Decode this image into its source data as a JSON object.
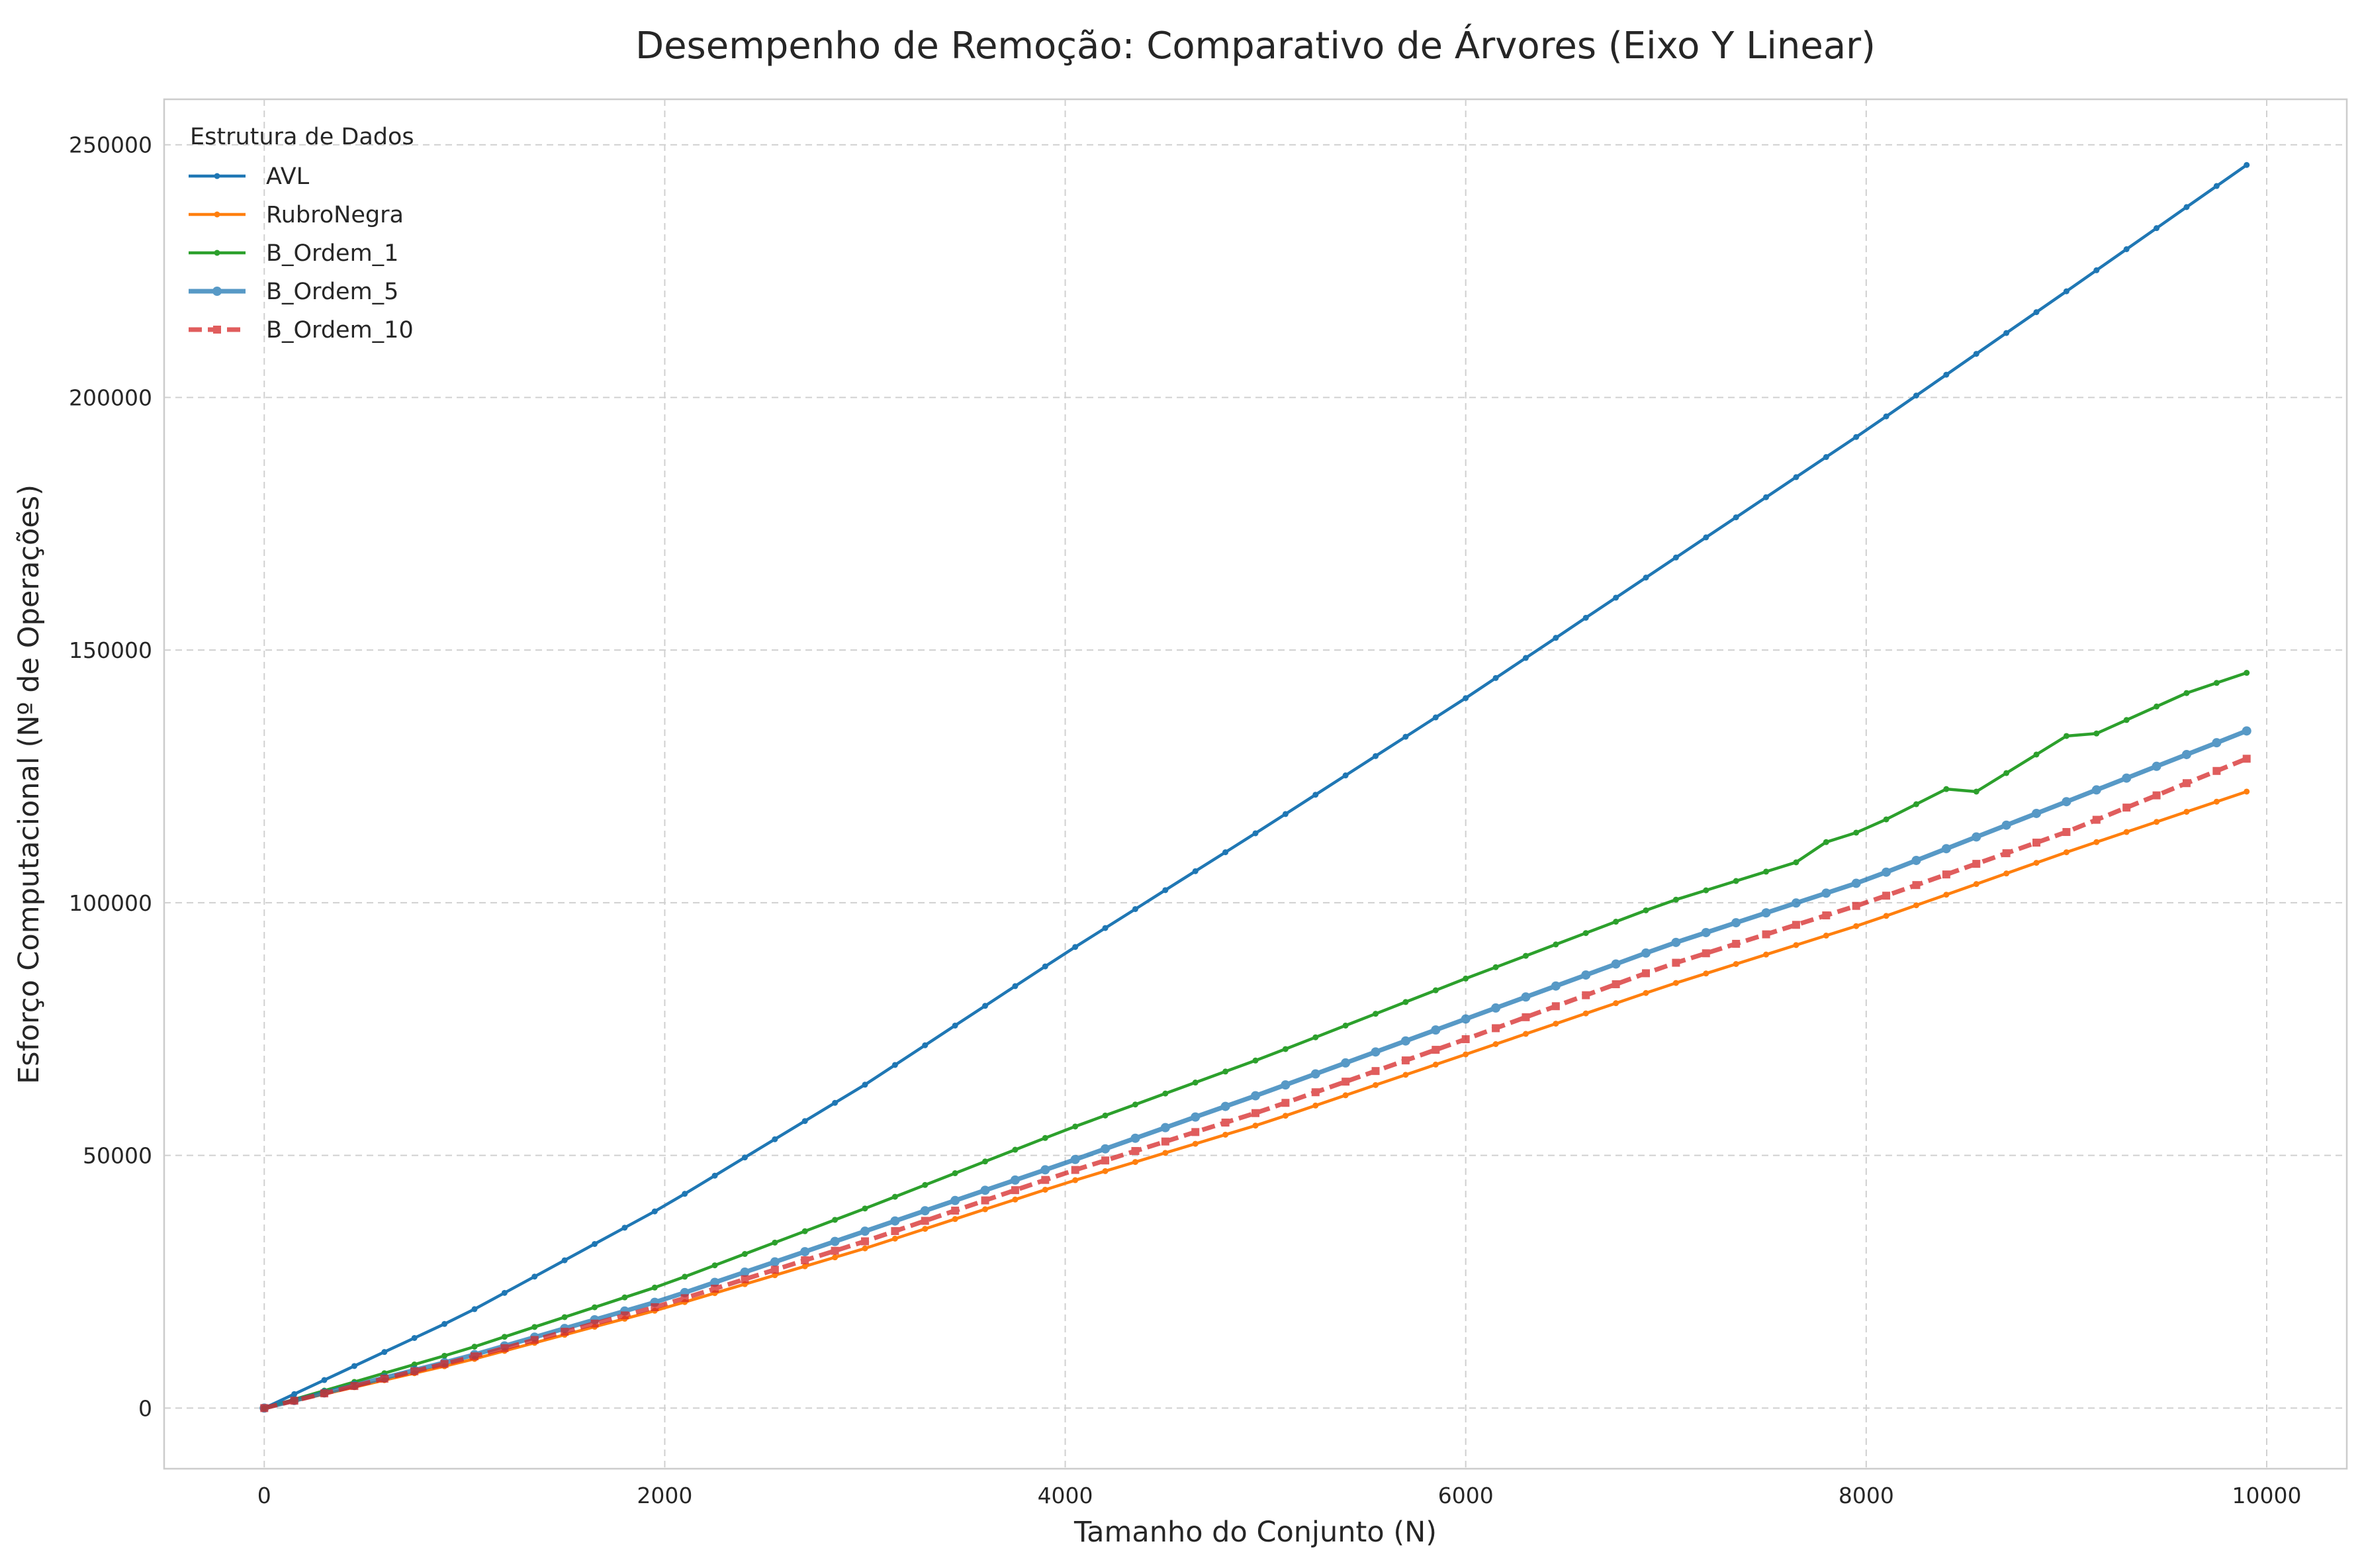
{
  "chart_data": {
    "type": "line",
    "title": "Desempenho de Remoção: Comparativo de Árvores (Eixo Y Linear)",
    "xlabel": "Tamanho do Conjunto (N)",
    "ylabel": "Esforço Computacional (Nº de Operações)",
    "xlim": [
      -500,
      10400
    ],
    "ylim": [
      -12000,
      259000
    ],
    "xticks": [
      "0",
      "2000",
      "4000",
      "6000",
      "8000",
      "10000"
    ],
    "yticks": [
      "0",
      "50000",
      "100000",
      "150000",
      "200000",
      "250000"
    ],
    "grid": true,
    "legend": {
      "title": "Estrutura de Dados",
      "placement": "top-left"
    },
    "series": [
      {
        "name": "AVL",
        "color": "#1f77b4",
        "style": "solid",
        "x": [
          0,
          1000,
          2000,
          3000,
          4000,
          5000,
          6000,
          7000,
          8000,
          9000,
          9900
        ],
        "y": [
          0,
          18500,
          40000,
          64000,
          90000,
          115000,
          140500,
          167000,
          193500,
          221000,
          246000
        ]
      },
      {
        "name": "RubroNegra",
        "color": "#ff7f0e",
        "style": "solid",
        "x": [
          0,
          1000,
          2000,
          3000,
          4000,
          5000,
          6000,
          7000,
          8000,
          9000,
          9900
        ],
        "y": [
          0,
          9200,
          19800,
          31600,
          44500,
          56500,
          70000,
          83500,
          96000,
          110000,
          122000
        ]
      },
      {
        "name": "B_Ordem_1",
        "color": "#2ca02c",
        "style": "solid",
        "x": [
          0,
          1000,
          2000,
          3000,
          4000,
          5000,
          6000,
          7000,
          7650,
          7800,
          8000,
          8400,
          8550,
          9000,
          9150,
          9600,
          9900
        ],
        "y": [
          0,
          11500,
          24500,
          39500,
          55000,
          69500,
          85000,
          100000,
          108000,
          112000,
          114500,
          122500,
          122000,
          133000,
          133500,
          141500,
          145500
        ]
      },
      {
        "name": "B_Ordem_5",
        "color": "#1f77b4",
        "style": "thick",
        "x": [
          0,
          1000,
          2000,
          3000,
          4000,
          5000,
          6000,
          7000,
          8000,
          9000,
          9900
        ],
        "y": [
          0,
          10000,
          21500,
          35000,
          48500,
          62500,
          77000,
          91500,
          104500,
          120000,
          134000
        ]
      },
      {
        "name": "B_Ordem_10",
        "color": "#d62728",
        "style": "dashed",
        "x": [
          0,
          1000,
          2000,
          3000,
          4000,
          5000,
          6000,
          7000,
          8000,
          9000,
          9900
        ],
        "y": [
          0,
          9700,
          20500,
          33000,
          46500,
          59000,
          73000,
          87500,
          100000,
          114000,
          128500
        ]
      }
    ]
  }
}
